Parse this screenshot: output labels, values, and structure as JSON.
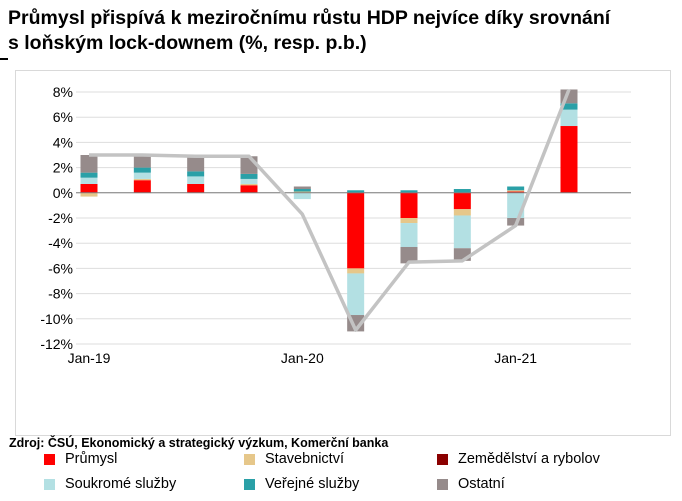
{
  "title_line1": "Průmysl přispívá k meziročnímu růstu HDP nejvíce díky srovnání",
  "title_line2": "s loňským lock-downem (%, resp. p.b.)",
  "source": "Zdroj: ČSÚ, Ekonomický a strategický výzkum, Komerční banka",
  "chart_data": {
    "type": "bar",
    "stacked": true,
    "x_tick_labels": [
      "Jan-19",
      "Jan-20",
      "Jan-21"
    ],
    "ylim": [
      -12,
      8
    ],
    "y_ticks": [
      "8%",
      "6%",
      "4%",
      "2%",
      "0%",
      "-2%",
      "-4%",
      "-6%",
      "-8%",
      "-10%",
      "-12%"
    ],
    "grid": true,
    "legend_position": "bottom",
    "series": [
      {
        "name": "Průmysl",
        "color": "#ff0000",
        "values": [
          0.7,
          1.0,
          0.7,
          0.6,
          0.0,
          -6.0,
          -2.0,
          -1.3,
          0.1,
          5.3
        ]
      },
      {
        "name": "Stavebnictví",
        "color": "#e6c78a",
        "values": [
          -0.3,
          0.1,
          0.0,
          0.1,
          0.1,
          -0.4,
          -0.4,
          -0.5,
          0.1,
          0.0
        ]
      },
      {
        "name": "Zemědělství a rybolov",
        "color": "#8b0000",
        "values": [
          0.0,
          0.0,
          0.0,
          0.0,
          0.0,
          0.0,
          0.0,
          0.0,
          0.0,
          0.0
        ]
      },
      {
        "name": "Soukromé služby",
        "color": "#b3e0e3",
        "values": [
          0.5,
          0.5,
          0.6,
          0.4,
          -0.5,
          -3.3,
          -1.9,
          -2.6,
          -2.0,
          1.3
        ]
      },
      {
        "name": "Veřejné služby",
        "color": "#2aa0a7",
        "values": [
          0.4,
          0.4,
          0.4,
          0.4,
          0.2,
          0.2,
          0.2,
          0.3,
          0.3,
          0.5
        ]
      },
      {
        "name": "Ostatní",
        "color": "#968b8b",
        "values": [
          1.4,
          1.1,
          1.1,
          1.4,
          0.2,
          -1.3,
          -1.3,
          -1.0,
          -0.6,
          1.1
        ]
      }
    ],
    "line": {
      "name": "HDP",
      "color": "#c3c3c3",
      "values": [
        3.0,
        3.0,
        2.9,
        2.9,
        -1.7,
        -10.9,
        -5.5,
        -5.4,
        -2.6,
        8.2
      ]
    }
  }
}
